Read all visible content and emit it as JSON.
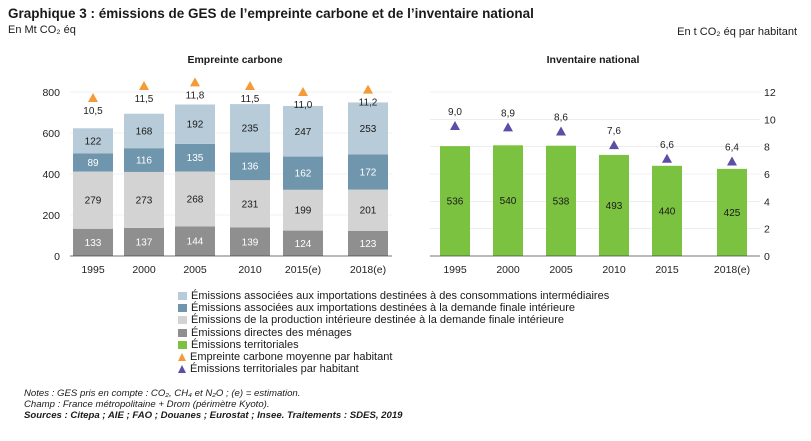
{
  "header": {
    "title": "Graphique 3 : émissions de GES de l’empreinte carbone et de l’inventaire national",
    "unit_left": "En Mt CO₂ éq",
    "unit_right": "En t CO₂ éq par habitant"
  },
  "colors": {
    "imports_intermediate": "#b7cbd8",
    "imports_final": "#6f96ac",
    "domestic_production": "#d3d3d3",
    "households": "#8f8f8f",
    "territorial": "#7cc241",
    "footprint_per_capita": "#f59a38",
    "territorial_per_capita": "#5b4ea6"
  },
  "chart_data": [
    {
      "type": "bar",
      "stacked": true,
      "title": "Empreinte carbone",
      "categories": [
        "1995",
        "2000",
        "2005",
        "2010",
        "2015(e)",
        "2018(e)"
      ],
      "y_ticks": [
        "0",
        "200",
        "400",
        "600",
        "800"
      ],
      "ylim": [
        0,
        800
      ],
      "series": [
        {
          "name": "Émissions directes des ménages",
          "values": [
            133,
            137,
            144,
            139,
            124,
            123
          ]
        },
        {
          "name": "Émissions de la production intérieure destinée à la demande finale intérieure",
          "values": [
            279,
            273,
            268,
            231,
            199,
            201
          ]
        },
        {
          "name": "Émissions associées aux importations destinées à la demande finale intérieure",
          "values": [
            89,
            116,
            135,
            136,
            162,
            172
          ]
        },
        {
          "name": "Émissions associées aux importations destinées à des consommations intermédiaires",
          "values": [
            122,
            168,
            192,
            235,
            247,
            253
          ]
        }
      ],
      "per_capita": {
        "name": "Empreinte carbone moyenne par habitant",
        "values": [
          10.5,
          11.5,
          11.8,
          11.5,
          11.0,
          11.2
        ],
        "labels": [
          "10,5",
          "11,5",
          "11,8",
          "11,5",
          "11,0",
          "11,2"
        ]
      }
    },
    {
      "type": "bar",
      "title": "Inventaire national",
      "categories": [
        "1995",
        "2000",
        "2005",
        "2010",
        "2015",
        "2018(e)"
      ],
      "y_ticks": [
        "0",
        "2",
        "4",
        "6",
        "8",
        "10",
        "12"
      ],
      "ylim_right": [
        0,
        12
      ],
      "series": [
        {
          "name": "Émissions territoriales",
          "values": [
            536,
            540,
            538,
            493,
            440,
            425
          ]
        }
      ],
      "per_capita": {
        "name": "Émissions territoriales par habitant",
        "values": [
          9.0,
          8.9,
          8.6,
          7.6,
          6.6,
          6.4
        ],
        "labels": [
          "9,0",
          "8,9",
          "8,6",
          "7,6",
          "6,6",
          "6,4"
        ]
      }
    }
  ],
  "legend": [
    "Émissions associées aux importations destinées à des consommations intermédiaires",
    "Émissions associées aux importations destinées à la demande finale intérieure",
    "Émissions de la production intérieure destinée à la demande finale intérieure",
    "Émissions directes des ménages",
    "Émissions territoriales",
    "Empreinte carbone moyenne par habitant",
    "Émissions territoriales par habitant"
  ],
  "notes": {
    "line1": "Notes : GES pris en compte : CO₂, CH₄ et N₂O ; (e) = estimation.",
    "line2": "Champ : France métropolitaine + Drom (périmètre Kyoto).",
    "line3": "Sources : Citepa ; AIE ; FAO ; Douanes ; Eurostat ; Insee. Traitements : SDES, 2019"
  }
}
